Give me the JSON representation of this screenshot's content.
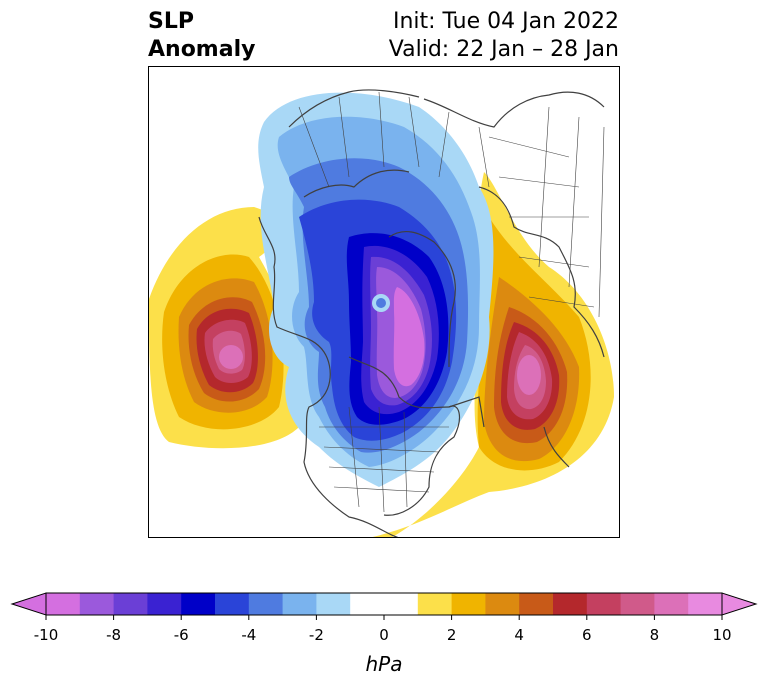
{
  "title": {
    "left_line1": "SLP",
    "left_line2": "Anomaly",
    "right_line1": "Init: Tue 04 Jan 2022",
    "right_line2": "Valid: 22 Jan – 28 Jan"
  },
  "colorbar": {
    "unit_label": "hPa",
    "ticks": [
      "-10",
      "-8",
      "-6",
      "-4",
      "-2",
      "0",
      "2",
      "4",
      "6",
      "8",
      "10"
    ],
    "min": -10,
    "max": 10,
    "colors": [
      "#d46fe0",
      "#9b59dc",
      "#6b3fd6",
      "#3a22d2",
      "#0000c8",
      "#2a44d8",
      "#4f7be0",
      "#7ab3ee",
      "#a9d8f6",
      "#ffffff",
      "#ffffff",
      "#fce04a",
      "#f0b400",
      "#dc8a10",
      "#c85a18",
      "#b4282c",
      "#c44060",
      "#d05a8a",
      "#dc70b8",
      "#e88ae0"
    ]
  },
  "map": {
    "variable": "SLP Anomaly",
    "features": [
      {
        "name": "negative anomaly center over Arctic",
        "sign": "negative",
        "min_hpa": -10
      },
      {
        "name": "positive anomaly over North Pacific",
        "sign": "positive",
        "max_hpa": 10
      },
      {
        "name": "positive anomaly over North Atlantic",
        "sign": "positive",
        "max_hpa": 10
      }
    ]
  }
}
